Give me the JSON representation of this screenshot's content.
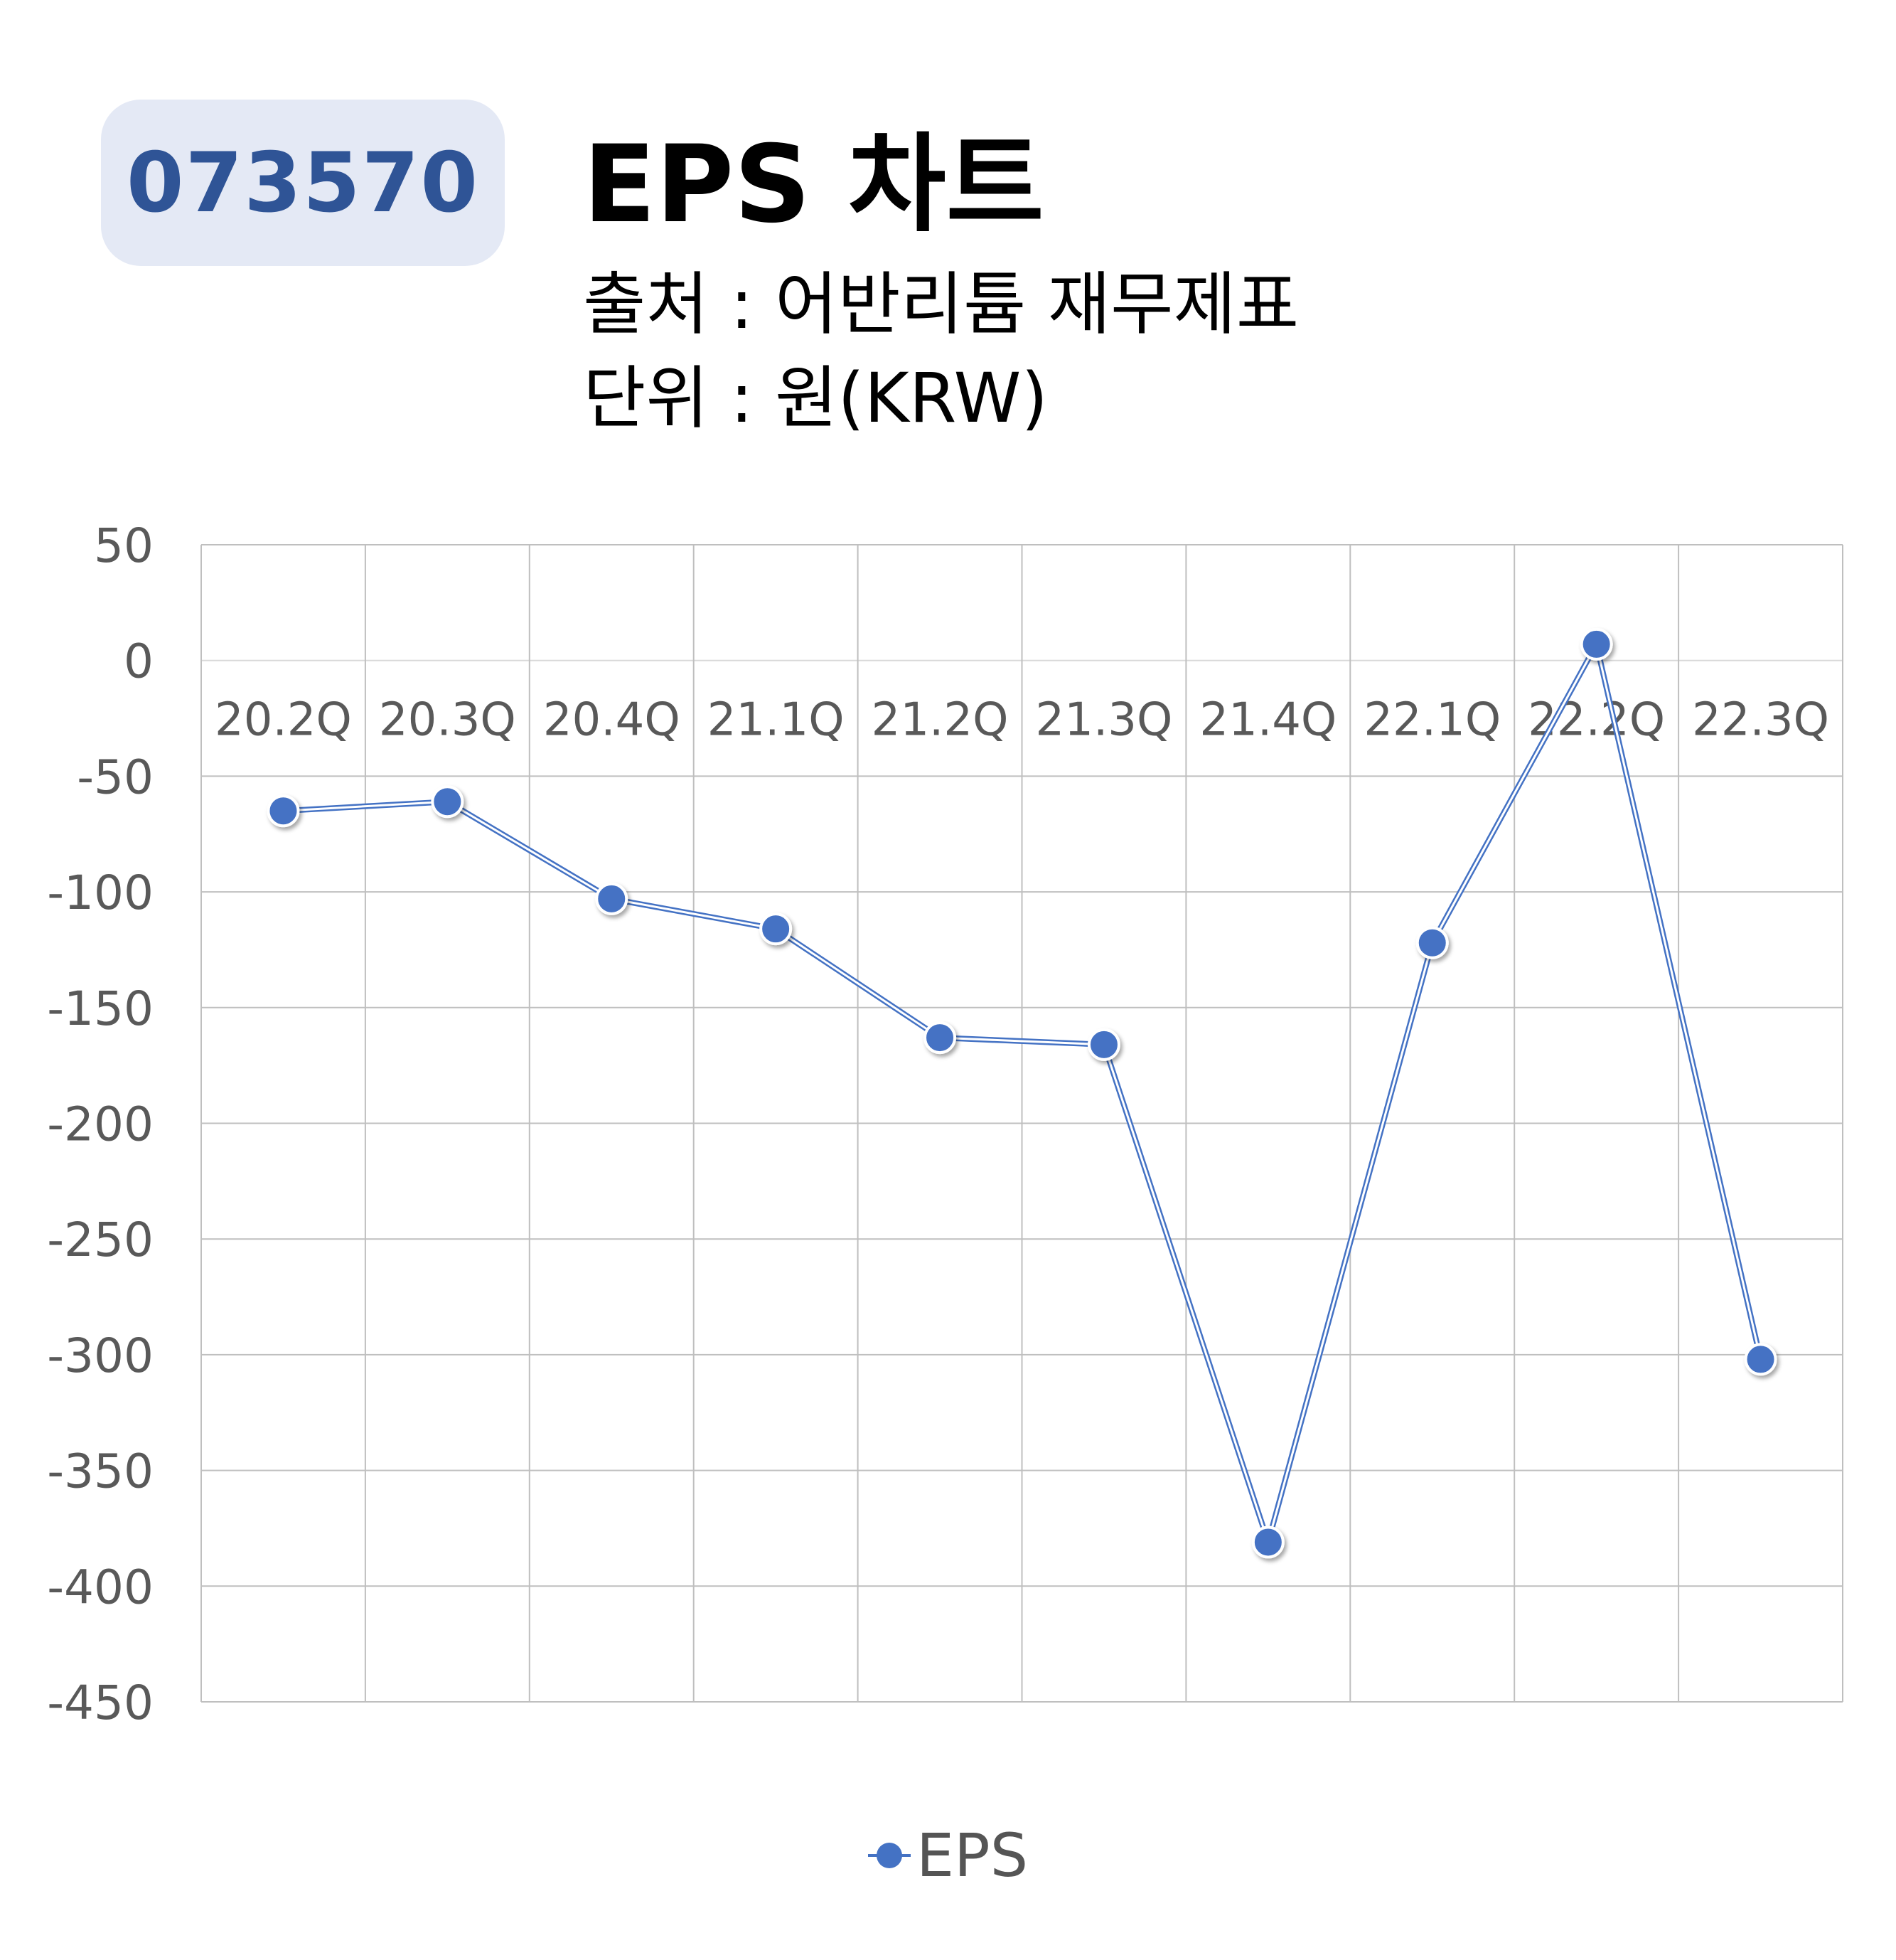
{
  "header": {
    "ticker": "073570",
    "title": "EPS 차트",
    "source": "출처 : 어반리튬 재무제표",
    "unit": "단위 : 원(KRW)"
  },
  "colors": {
    "series": "#4472c4",
    "badge_bg": "#e4e9f5",
    "badge_text": "#2f5496",
    "grid": "#bfbfbf",
    "axis_text": "#595959"
  },
  "chart_data": {
    "type": "line",
    "categories": [
      "20.2Q",
      "20.3Q",
      "20.4Q",
      "21.1Q",
      "21.2Q",
      "21.3Q",
      "21.4Q",
      "22.1Q",
      "22.2Q",
      "22.3Q"
    ],
    "series": [
      {
        "name": "EPS",
        "values": [
          -65,
          -61,
          -103,
          -116,
          -163,
          -166,
          -381,
          -122,
          7,
          -302
        ]
      }
    ],
    "ylim": [
      -450,
      50
    ],
    "yticks": [
      50,
      0,
      -50,
      -100,
      -150,
      -200,
      -250,
      -300,
      -350,
      -400,
      -450
    ],
    "grid": true,
    "legend": "bottom-center",
    "category_labels_position": "below-zero-line"
  }
}
